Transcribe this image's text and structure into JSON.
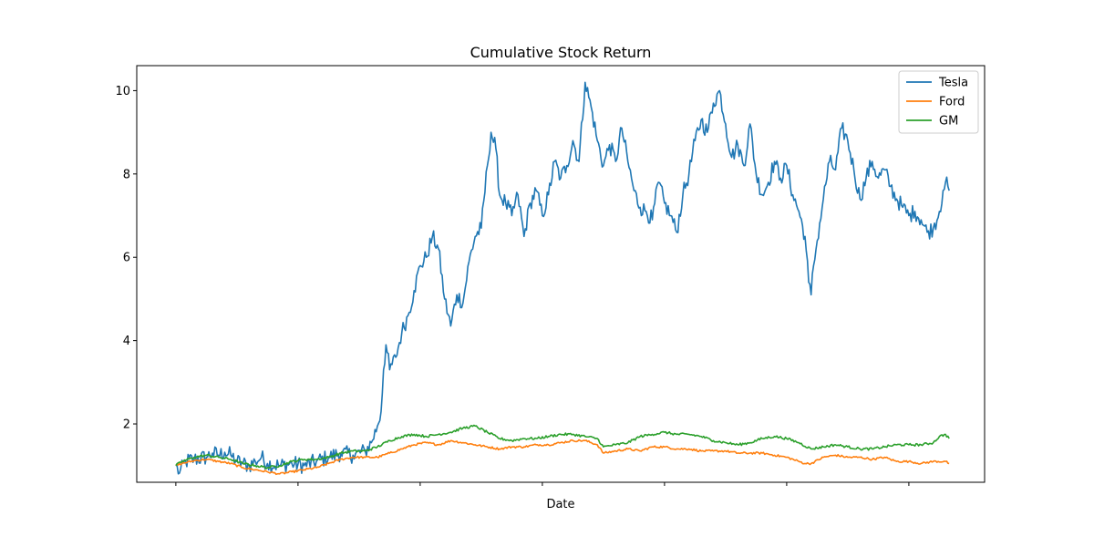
{
  "chart_data": {
    "type": "line",
    "title": "Cumulative Stock Return",
    "xlabel": "Date",
    "ylabel": "",
    "ylim": [
      0.6,
      10.6
    ],
    "xlim": [
      -32,
      662
    ],
    "x_tick_positions": [
      0,
      100,
      200,
      300,
      400,
      500,
      600
    ],
    "y_ticks": [
      2,
      4,
      6,
      8,
      10
    ],
    "grid": false,
    "legend_position": "top-right",
    "colors": {
      "Tesla": "#1f77b4",
      "Ford": "#ff7f0e",
      "GM": "#2ca02c"
    },
    "series": [
      {
        "name": "Tesla",
        "anchors": [
          [
            0,
            1.0
          ],
          [
            3,
            0.82
          ],
          [
            8,
            1.1
          ],
          [
            15,
            1.15
          ],
          [
            25,
            1.2
          ],
          [
            30,
            1.3
          ],
          [
            35,
            1.25
          ],
          [
            40,
            1.32
          ],
          [
            45,
            1.25
          ],
          [
            50,
            1.1
          ],
          [
            55,
            1.05
          ],
          [
            60,
            1.0
          ],
          [
            65,
            1.1
          ],
          [
            70,
            1.2
          ],
          [
            75,
            1.05
          ],
          [
            85,
            1.0
          ],
          [
            95,
            1.05
          ],
          [
            105,
            1.0
          ],
          [
            115,
            1.1
          ],
          [
            125,
            1.2
          ],
          [
            135,
            1.3
          ],
          [
            145,
            1.25
          ],
          [
            155,
            1.35
          ],
          [
            160,
            1.55
          ],
          [
            165,
            1.95
          ],
          [
            168,
            2.3
          ],
          [
            170,
            3.3
          ],
          [
            172,
            3.9
          ],
          [
            175,
            3.3
          ],
          [
            180,
            3.6
          ],
          [
            185,
            4.2
          ],
          [
            190,
            4.6
          ],
          [
            195,
            5.2
          ],
          [
            200,
            5.8
          ],
          [
            205,
            6.0
          ],
          [
            210,
            6.5
          ],
          [
            215,
            6.2
          ],
          [
            220,
            5.0
          ],
          [
            225,
            4.35
          ],
          [
            230,
            5.1
          ],
          [
            235,
            4.9
          ],
          [
            240,
            5.9
          ],
          [
            245,
            6.5
          ],
          [
            250,
            6.7
          ],
          [
            255,
            8.2
          ],
          [
            258,
            9.0
          ],
          [
            262,
            8.6
          ],
          [
            265,
            7.5
          ],
          [
            270,
            7.3
          ],
          [
            275,
            7.0
          ],
          [
            280,
            7.5
          ],
          [
            285,
            6.5
          ],
          [
            290,
            7.3
          ],
          [
            295,
            7.6
          ],
          [
            300,
            7.0
          ],
          [
            305,
            7.5
          ],
          [
            310,
            8.3
          ],
          [
            315,
            7.9
          ],
          [
            320,
            8.2
          ],
          [
            325,
            8.8
          ],
          [
            330,
            8.3
          ],
          [
            335,
            10.2
          ],
          [
            340,
            9.6
          ],
          [
            345,
            8.8
          ],
          [
            350,
            8.2
          ],
          [
            355,
            8.7
          ],
          [
            360,
            8.3
          ],
          [
            365,
            9.1
          ],
          [
            370,
            8.3
          ],
          [
            375,
            7.6
          ],
          [
            380,
            7.2
          ],
          [
            385,
            7.1
          ],
          [
            390,
            6.9
          ],
          [
            395,
            7.8
          ],
          [
            400,
            7.3
          ],
          [
            405,
            7.0
          ],
          [
            410,
            6.6
          ],
          [
            415,
            7.5
          ],
          [
            420,
            8.0
          ],
          [
            425,
            8.8
          ],
          [
            430,
            9.3
          ],
          [
            435,
            9.0
          ],
          [
            440,
            9.7
          ],
          [
            445,
            10.0
          ],
          [
            450,
            9.2
          ],
          [
            455,
            8.4
          ],
          [
            460,
            8.7
          ],
          [
            465,
            8.2
          ],
          [
            470,
            9.2
          ],
          [
            475,
            8.0
          ],
          [
            480,
            7.5
          ],
          [
            485,
            7.8
          ],
          [
            490,
            8.3
          ],
          [
            495,
            7.9
          ],
          [
            500,
            8.2
          ],
          [
            505,
            7.5
          ],
          [
            510,
            7.1
          ],
          [
            515,
            6.5
          ],
          [
            518,
            5.4
          ],
          [
            520,
            5.1
          ],
          [
            522,
            5.8
          ],
          [
            525,
            6.4
          ],
          [
            530,
            7.4
          ],
          [
            535,
            8.3
          ],
          [
            540,
            8.1
          ],
          [
            545,
            9.1
          ],
          [
            550,
            8.8
          ],
          [
            555,
            8.1
          ],
          [
            560,
            7.4
          ],
          [
            565,
            7.9
          ],
          [
            570,
            8.3
          ],
          [
            575,
            7.9
          ],
          [
            580,
            8.1
          ],
          [
            585,
            7.7
          ],
          [
            590,
            7.4
          ],
          [
            595,
            7.2
          ],
          [
            600,
            7.0
          ],
          [
            605,
            7.1
          ],
          [
            610,
            6.9
          ],
          [
            615,
            6.6
          ],
          [
            620,
            6.7
          ],
          [
            625,
            7.1
          ],
          [
            628,
            7.6
          ],
          [
            630,
            7.8
          ],
          [
            633,
            7.6
          ]
        ],
        "noise": 0.2
      },
      {
        "name": "Ford",
        "anchors": [
          [
            0,
            1.0
          ],
          [
            5,
            1.05
          ],
          [
            15,
            1.12
          ],
          [
            25,
            1.15
          ],
          [
            35,
            1.1
          ],
          [
            45,
            1.05
          ],
          [
            55,
            0.95
          ],
          [
            65,
            0.9
          ],
          [
            75,
            0.85
          ],
          [
            85,
            0.8
          ],
          [
            95,
            0.85
          ],
          [
            105,
            0.9
          ],
          [
            115,
            0.95
          ],
          [
            125,
            1.05
          ],
          [
            135,
            1.15
          ],
          [
            145,
            1.2
          ],
          [
            155,
            1.2
          ],
          [
            165,
            1.2
          ],
          [
            175,
            1.3
          ],
          [
            185,
            1.4
          ],
          [
            195,
            1.5
          ],
          [
            205,
            1.55
          ],
          [
            215,
            1.5
          ],
          [
            225,
            1.6
          ],
          [
            235,
            1.55
          ],
          [
            245,
            1.5
          ],
          [
            255,
            1.45
          ],
          [
            265,
            1.4
          ],
          [
            275,
            1.45
          ],
          [
            285,
            1.45
          ],
          [
            295,
            1.5
          ],
          [
            305,
            1.5
          ],
          [
            315,
            1.55
          ],
          [
            325,
            1.6
          ],
          [
            335,
            1.6
          ],
          [
            345,
            1.5
          ],
          [
            350,
            1.3
          ],
          [
            360,
            1.35
          ],
          [
            370,
            1.4
          ],
          [
            380,
            1.35
          ],
          [
            390,
            1.45
          ],
          [
            400,
            1.45
          ],
          [
            410,
            1.4
          ],
          [
            420,
            1.4
          ],
          [
            430,
            1.35
          ],
          [
            440,
            1.35
          ],
          [
            450,
            1.35
          ],
          [
            460,
            1.3
          ],
          [
            470,
            1.3
          ],
          [
            480,
            1.3
          ],
          [
            490,
            1.25
          ],
          [
            500,
            1.2
          ],
          [
            510,
            1.1
          ],
          [
            515,
            1.05
          ],
          [
            520,
            1.05
          ],
          [
            530,
            1.2
          ],
          [
            540,
            1.25
          ],
          [
            550,
            1.2
          ],
          [
            560,
            1.2
          ],
          [
            570,
            1.15
          ],
          [
            580,
            1.2
          ],
          [
            590,
            1.1
          ],
          [
            600,
            1.1
          ],
          [
            610,
            1.05
          ],
          [
            620,
            1.1
          ],
          [
            630,
            1.1
          ],
          [
            633,
            1.05
          ]
        ],
        "noise": 0.025
      },
      {
        "name": "GM",
        "anchors": [
          [
            0,
            1.0
          ],
          [
            5,
            1.1
          ],
          [
            15,
            1.2
          ],
          [
            25,
            1.25
          ],
          [
            35,
            1.2
          ],
          [
            45,
            1.15
          ],
          [
            55,
            1.05
          ],
          [
            65,
            1.0
          ],
          [
            75,
            0.95
          ],
          [
            85,
            1.0
          ],
          [
            95,
            1.1
          ],
          [
            105,
            1.15
          ],
          [
            115,
            1.15
          ],
          [
            125,
            1.2
          ],
          [
            135,
            1.3
          ],
          [
            145,
            1.35
          ],
          [
            155,
            1.35
          ],
          [
            165,
            1.45
          ],
          [
            175,
            1.6
          ],
          [
            185,
            1.7
          ],
          [
            195,
            1.75
          ],
          [
            205,
            1.7
          ],
          [
            215,
            1.75
          ],
          [
            225,
            1.8
          ],
          [
            235,
            1.9
          ],
          [
            245,
            1.95
          ],
          [
            255,
            1.8
          ],
          [
            265,
            1.65
          ],
          [
            275,
            1.6
          ],
          [
            285,
            1.65
          ],
          [
            295,
            1.65
          ],
          [
            305,
            1.7
          ],
          [
            315,
            1.75
          ],
          [
            325,
            1.75
          ],
          [
            335,
            1.7
          ],
          [
            345,
            1.65
          ],
          [
            350,
            1.45
          ],
          [
            360,
            1.5
          ],
          [
            370,
            1.55
          ],
          [
            380,
            1.7
          ],
          [
            390,
            1.75
          ],
          [
            400,
            1.8
          ],
          [
            410,
            1.75
          ],
          [
            420,
            1.75
          ],
          [
            430,
            1.7
          ],
          [
            440,
            1.6
          ],
          [
            450,
            1.55
          ],
          [
            460,
            1.5
          ],
          [
            470,
            1.55
          ],
          [
            480,
            1.65
          ],
          [
            490,
            1.7
          ],
          [
            500,
            1.65
          ],
          [
            510,
            1.55
          ],
          [
            520,
            1.4
          ],
          [
            530,
            1.45
          ],
          [
            540,
            1.5
          ],
          [
            550,
            1.45
          ],
          [
            560,
            1.4
          ],
          [
            570,
            1.4
          ],
          [
            580,
            1.45
          ],
          [
            590,
            1.5
          ],
          [
            600,
            1.5
          ],
          [
            610,
            1.5
          ],
          [
            620,
            1.55
          ],
          [
            625,
            1.7
          ],
          [
            630,
            1.75
          ],
          [
            633,
            1.65
          ]
        ],
        "noise": 0.03
      }
    ]
  }
}
